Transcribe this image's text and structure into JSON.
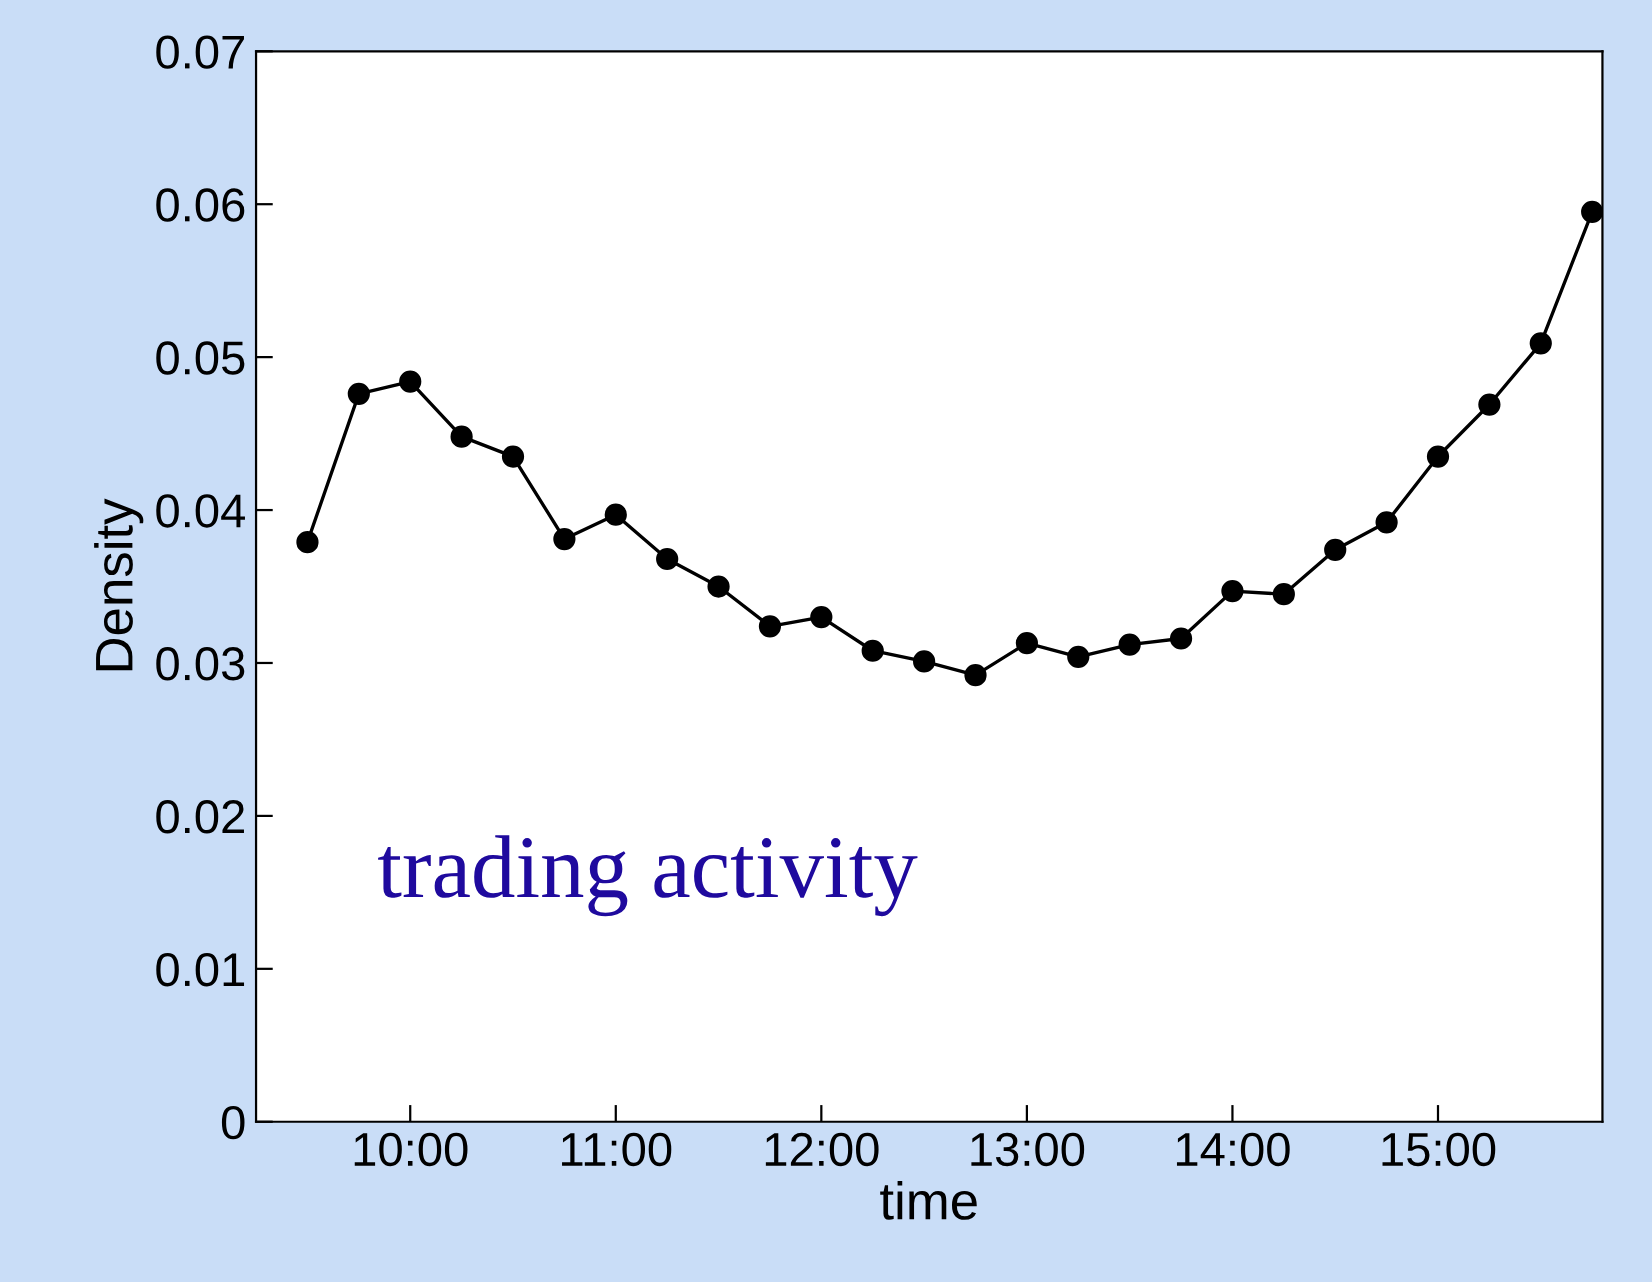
{
  "chart_data": {
    "type": "line",
    "xlabel": "time",
    "ylabel": "Density",
    "annotations": [
      "trading activity"
    ],
    "x": [
      9.5,
      9.75,
      10,
      10.25,
      10.5,
      10.75,
      11,
      11.25,
      11.5,
      11.75,
      12,
      12.25,
      12.5,
      12.75,
      13,
      13.25,
      13.5,
      13.75,
      14,
      14.25,
      14.5,
      14.75,
      15,
      15.25,
      15.5,
      15.75
    ],
    "series": [
      {
        "color": "#000000",
        "values": [
          0.0379,
          0.0476,
          0.0484,
          0.0448,
          0.0435,
          0.0381,
          0.0397,
          0.0368,
          0.035,
          0.0324,
          0.033,
          0.0308,
          0.0301,
          0.0292,
          0.0313,
          0.0304,
          0.0312,
          0.0316,
          0.0347,
          0.0345,
          0.0374,
          0.0392,
          0.0435,
          0.0469,
          0.0509,
          0.0595
        ]
      }
    ],
    "xlim": [
      9.25,
      15.8
    ],
    "ylim": [
      0,
      0.07
    ],
    "xticks": [
      {
        "value": 10,
        "label": "10:00"
      },
      {
        "value": 11,
        "label": "11:00"
      },
      {
        "value": 12,
        "label": "12:00"
      },
      {
        "value": 13,
        "label": "13:00"
      },
      {
        "value": 14,
        "label": "14:00"
      },
      {
        "value": 15,
        "label": "15:00"
      }
    ],
    "yticks": [
      0,
      0.01,
      0.02,
      0.03,
      0.04,
      0.05,
      0.06,
      0.07
    ],
    "marker": "circle",
    "line_style": "solid",
    "grid": false,
    "legend": false
  }
}
